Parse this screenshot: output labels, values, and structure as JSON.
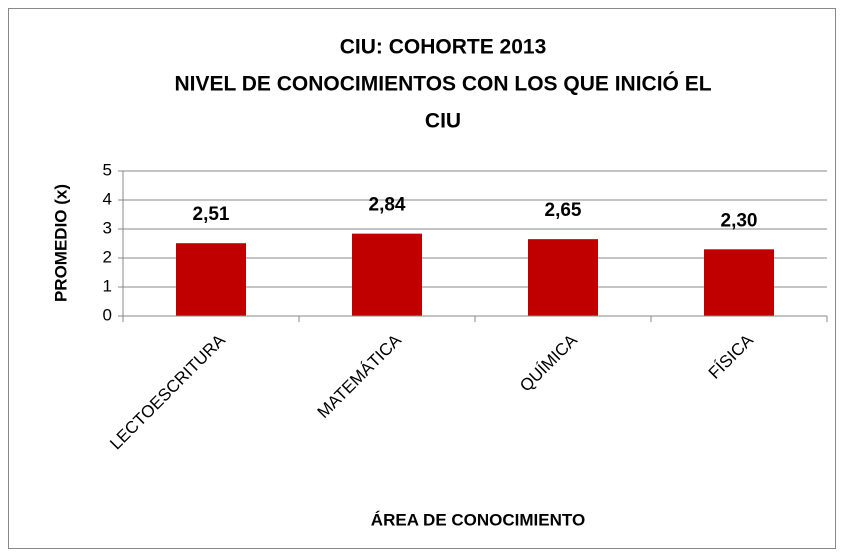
{
  "chart_data": {
    "type": "bar",
    "title": [
      "CIU: COHORTE 2013",
      "NIVEL DE CONOCIMIENTOS CON LOS QUE INICIÓ EL",
      "CIU"
    ],
    "x_label": "ÁREA DE CONOCIMIENTO",
    "y_label": "PROMEDIO (x)",
    "categories": [
      "LECTOESCRITURA",
      "MATEMÁTICA",
      "QUÍMICA",
      "FÍSICA"
    ],
    "values": [
      2.51,
      2.84,
      2.65,
      2.3
    ],
    "value_labels": [
      "2,51",
      "2,84",
      "2,65",
      "2,30"
    ],
    "color": "#c00000",
    "ylim": [
      0,
      5
    ],
    "yticks": [
      0,
      1,
      2,
      3,
      4,
      5
    ],
    "grid": true
  }
}
